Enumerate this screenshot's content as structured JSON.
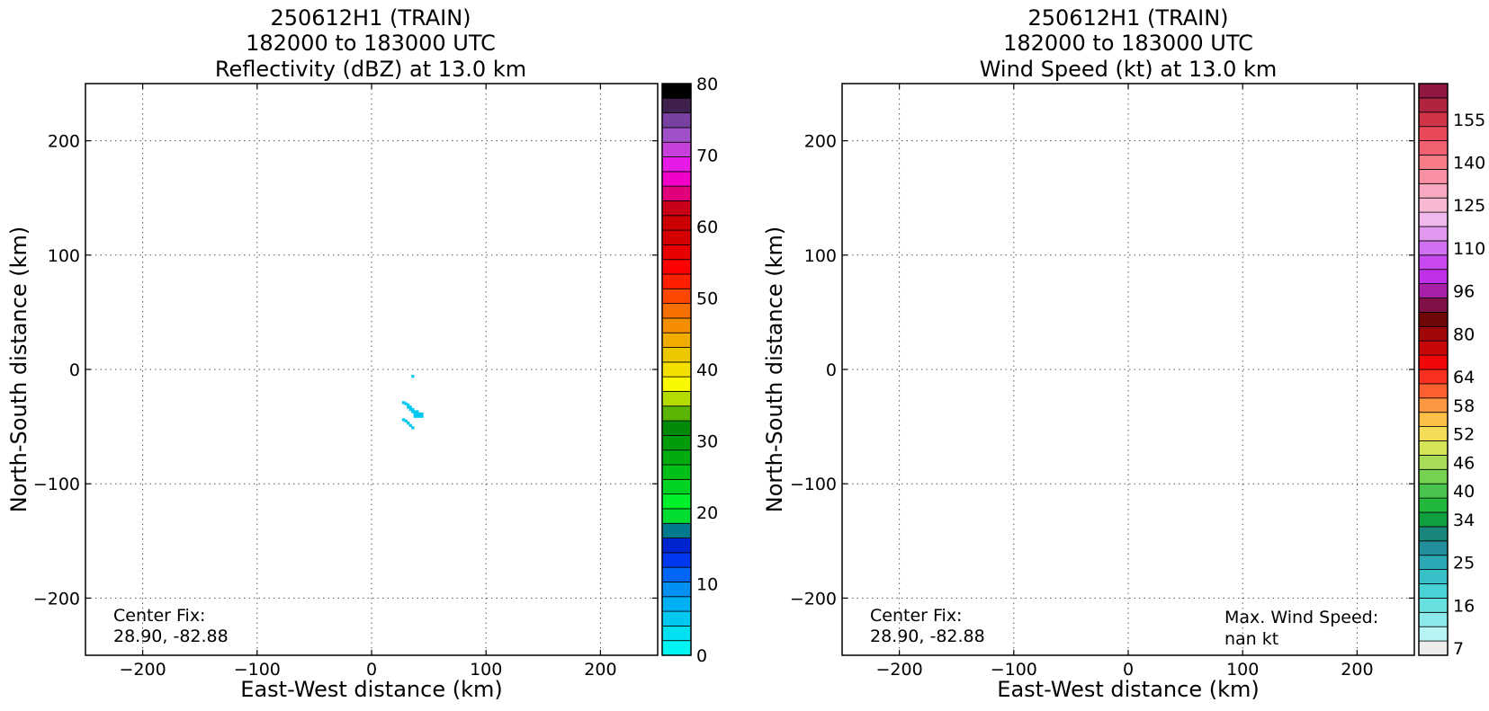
{
  "chart_data": [
    {
      "type": "heatmap",
      "title_lines": [
        "250612H1 (TRAIN)",
        "182000 to 183000 UTC",
        "Reflectivity (dBZ) at 13.0 km"
      ],
      "xlabel": "East-West distance (km)",
      "ylabel": "North-South distance (km)",
      "xlim": [
        -250,
        250
      ],
      "ylim": [
        -250,
        250
      ],
      "xticks": [
        -200,
        -100,
        0,
        100,
        200
      ],
      "yticks": [
        200,
        100,
        0,
        -100,
        -200
      ],
      "xtick_labels": [
        "−200",
        "−100",
        "0",
        "100",
        "200"
      ],
      "ytick_labels": [
        "200",
        "100",
        "0",
        "−100",
        "−200"
      ],
      "grid": true,
      "annotation_left": [
        "Center Fix:",
        "28.90, -82.88"
      ],
      "echo_color": "#00c8f0",
      "echo_cells": [
        [
          36,
          -6
        ],
        [
          28,
          -29
        ],
        [
          30,
          -30
        ],
        [
          32,
          -31
        ],
        [
          32,
          -33
        ],
        [
          34,
          -33
        ],
        [
          34,
          -35
        ],
        [
          36,
          -35
        ],
        [
          36,
          -37
        ],
        [
          38,
          -37
        ],
        [
          38,
          -39
        ],
        [
          40,
          -37
        ],
        [
          40,
          -39
        ],
        [
          40,
          -41
        ],
        [
          42,
          -39
        ],
        [
          42,
          -41
        ],
        [
          44,
          -39
        ],
        [
          44,
          -41
        ],
        [
          38,
          -41
        ],
        [
          28,
          -44
        ],
        [
          30,
          -45
        ],
        [
          32,
          -47
        ],
        [
          34,
          -49
        ],
        [
          36,
          -51
        ]
      ],
      "colorbar": {
        "min": 0,
        "max": 80,
        "tick_values": [
          0,
          10,
          20,
          30,
          40,
          50,
          60,
          70,
          80
        ],
        "tick_labels": [
          "0",
          "10",
          "20",
          "30",
          "40",
          "50",
          "60",
          "70",
          "80"
        ],
        "colors": [
          "#00f5f5",
          "#00e0f0",
          "#00c8f0",
          "#00b0f5",
          "#0090f5",
          "#0066f5",
          "#0038f0",
          "#0024d0",
          "#007a8c",
          "#00dc30",
          "#00f02a",
          "#00d420",
          "#00c018",
          "#00ac10",
          "#009c0a",
          "#008a08",
          "#5ab400",
          "#b4dc00",
          "#f8f800",
          "#f4e000",
          "#ecc800",
          "#f0ac00",
          "#f48e00",
          "#f87000",
          "#fc4800",
          "#ff2000",
          "#ff0000",
          "#e80000",
          "#d40000",
          "#cc0000",
          "#c80018",
          "#e0007c",
          "#f000c8",
          "#e81ae8",
          "#c840dc",
          "#a050c8",
          "#7840a0",
          "#40204c",
          "#000000"
        ]
      }
    },
    {
      "type": "heatmap",
      "title_lines": [
        "250612H1 (TRAIN)",
        "182000 to 183000 UTC",
        "Wind Speed (kt) at 13.0 km"
      ],
      "xlabel": "East-West distance (km)",
      "ylabel": "North-South distance (km)",
      "xlim": [
        -250,
        250
      ],
      "ylim": [
        -250,
        250
      ],
      "xticks": [
        -200,
        -100,
        0,
        100,
        200
      ],
      "yticks": [
        200,
        100,
        0,
        -100,
        -200
      ],
      "xtick_labels": [
        "−200",
        "−100",
        "0",
        "100",
        "200"
      ],
      "ytick_labels": [
        "200",
        "100",
        "0",
        "−100",
        "−200"
      ],
      "grid": true,
      "annotation_left": [
        "Center Fix:",
        "28.90, -82.88"
      ],
      "annotation_right": [
        "Max. Wind Speed:",
        "nan kt"
      ],
      "echo_cells": [],
      "colorbar": {
        "tick_labels": [
          "7",
          "16",
          "25",
          "34",
          "40",
          "46",
          "52",
          "58",
          "64",
          "80",
          "96",
          "110",
          "125",
          "140",
          "155"
        ],
        "tick_bins": [
          0,
          3,
          6,
          9,
          11,
          13,
          15,
          17,
          19,
          22,
          25,
          28,
          31,
          34,
          37
        ],
        "colors": [
          "#ececec",
          "#b8f4f4",
          "#8ceaea",
          "#68e0e0",
          "#48d2d6",
          "#38c0c8",
          "#2ca8b4",
          "#22909c",
          "#18867a",
          "#10a040",
          "#22b83c",
          "#48c44c",
          "#74d250",
          "#a8dc58",
          "#d6e458",
          "#f4dc58",
          "#fcc048",
          "#fc9640",
          "#fc6030",
          "#f83020",
          "#f00808",
          "#c80808",
          "#a00808",
          "#700808",
          "#801048",
          "#a820a8",
          "#c030e8",
          "#c848f0",
          "#d070f0",
          "#e098ee",
          "#f0b8ec",
          "#f8b8d4",
          "#f8a8c0",
          "#f890a4",
          "#f87c88",
          "#f06070",
          "#e84858",
          "#d03448",
          "#b02440",
          "#901840"
        ]
      }
    }
  ]
}
